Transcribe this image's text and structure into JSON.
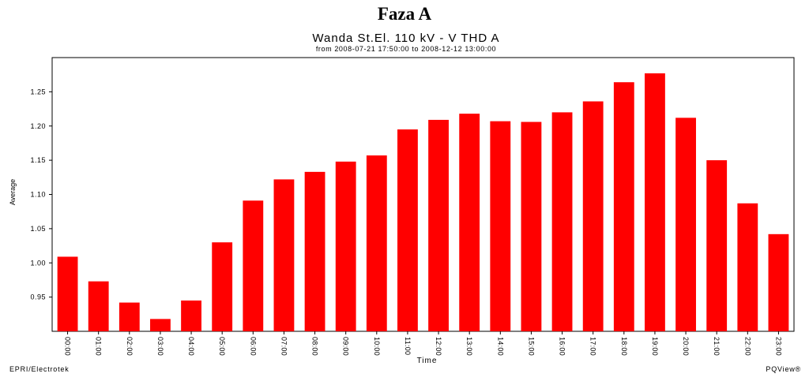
{
  "header": {
    "main_title": "Faza A"
  },
  "footer": {
    "left": "EPRI/Electrotek",
    "right": "PQView®"
  },
  "chart_data": {
    "type": "bar",
    "title": "Wanda St.El. 110 kV - V THD A",
    "subtitle": "from 2008-07-21 17:50:00 to 2008-12-12 13:00:00",
    "xlabel": "Time",
    "ylabel": "Average",
    "bar_color": "#ff0000",
    "ylim": [
      0.9,
      1.3
    ],
    "yticks": [
      0.95,
      1.0,
      1.05,
      1.1,
      1.15,
      1.2,
      1.25
    ],
    "ytick_labels": [
      "0.95",
      "1.00",
      "1.05",
      "1.10",
      "1.15",
      "1.20",
      "1.25"
    ],
    "categories": [
      "00:00",
      "01:00",
      "02:00",
      "03:00",
      "04:00",
      "05:00",
      "06:00",
      "07:00",
      "08:00",
      "09:00",
      "10:00",
      "11:00",
      "12:00",
      "13:00",
      "14:00",
      "15:00",
      "16:00",
      "17:00",
      "18:00",
      "19:00",
      "20:00",
      "21:00",
      "22:00",
      "23:00"
    ],
    "values": [
      1.009,
      0.973,
      0.942,
      0.918,
      0.945,
      1.03,
      1.091,
      1.122,
      1.133,
      1.148,
      1.157,
      1.195,
      1.209,
      1.218,
      1.207,
      1.206,
      1.22,
      1.236,
      1.264,
      1.277,
      1.212,
      1.15,
      1.087,
      1.042
    ],
    "grid": false,
    "legend": "none"
  }
}
